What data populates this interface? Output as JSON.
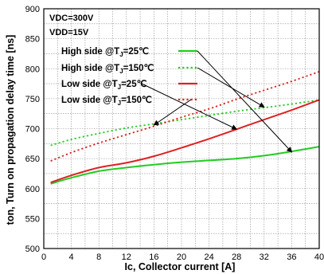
{
  "chart_data": {
    "type": "line",
    "xlabel": "Ic, Collector current [A]",
    "ylabel": "ton, Turn on propagation delay time [ns]",
    "xlim": [
      0,
      40
    ],
    "ylim": [
      500,
      900
    ],
    "x_ticks": [
      "0",
      "4",
      "8",
      "12",
      "16",
      "20",
      "24",
      "28",
      "32",
      "36",
      "40"
    ],
    "y_ticks": [
      "500",
      "550",
      "600",
      "650",
      "700",
      "750",
      "800",
      "850",
      "900"
    ],
    "grid": true,
    "legend_position": "top-left",
    "conditions": [
      "VDC=300V",
      "VDD=15V"
    ],
    "series": [
      {
        "name": "High side @TJ=25℃",
        "color": "#22cc22",
        "style": "solid",
        "x": [
          1,
          4,
          8,
          12,
          16,
          20,
          24,
          28,
          32,
          36,
          40
        ],
        "y": [
          608,
          618,
          629,
          635,
          640,
          644,
          647,
          650,
          655,
          662,
          670
        ]
      },
      {
        "name": "High side @TJ=150℃",
        "color": "#22cc22",
        "style": "dotted",
        "x": [
          1,
          4,
          8,
          12,
          16,
          20,
          24,
          28,
          32,
          36,
          40
        ],
        "y": [
          672,
          682,
          692,
          701,
          708,
          715,
          722,
          729,
          735,
          741,
          748
        ]
      },
      {
        "name": "Low side @TJ=25℃",
        "color": "#dd2222",
        "style": "solid",
        "x": [
          1,
          4,
          8,
          12,
          16,
          20,
          24,
          28,
          32,
          36,
          40
        ],
        "y": [
          610,
          622,
          635,
          643,
          654,
          668,
          683,
          699,
          715,
          731,
          748
        ]
      },
      {
        "name": "Low side @TJ=150℃",
        "color": "#dd2222",
        "style": "dotted",
        "x": [
          1,
          4,
          8,
          12,
          16,
          20,
          24,
          28,
          32,
          36,
          40
        ],
        "y": [
          646,
          660,
          676,
          690,
          704,
          719,
          733,
          749,
          764,
          779,
          795
        ]
      }
    ]
  }
}
